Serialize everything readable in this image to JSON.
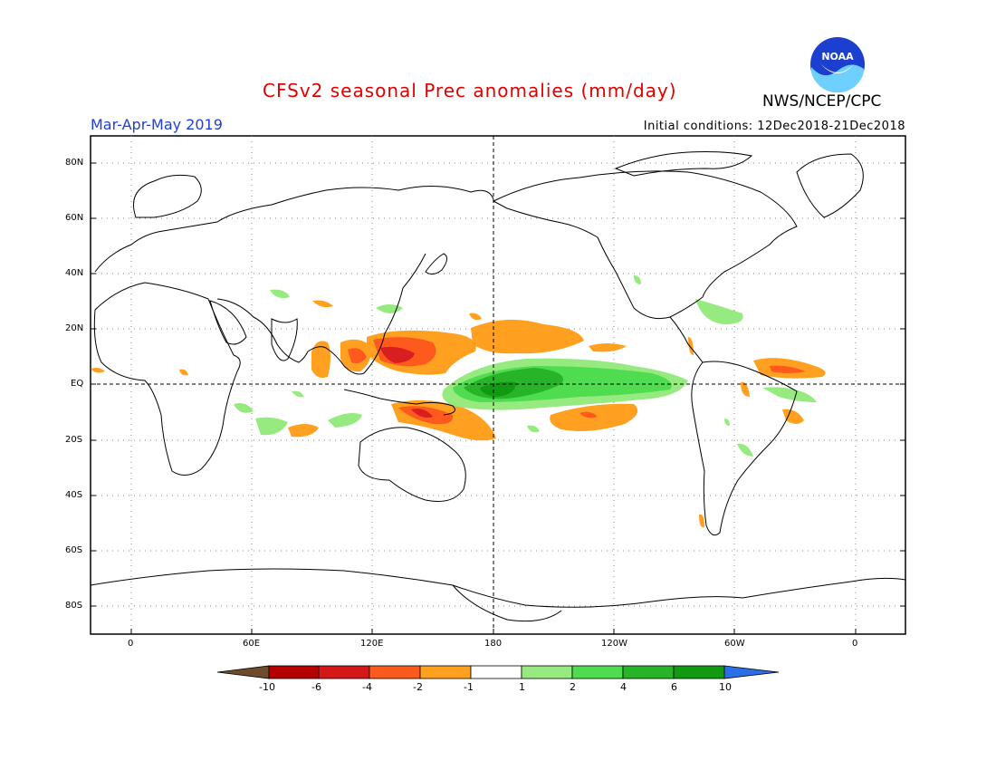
{
  "header": {
    "title": "CFSv2 seasonal Prec anomalies (mm/day)",
    "season": "Mar-Apr-May 2019",
    "initial_conditions": "Initial conditions: 12Dec2018-21Dec2018",
    "agency": "NWS/NCEP/CPC",
    "logo_text": "NOAA"
  },
  "map": {
    "lat_ticks": [
      "80N",
      "60N",
      "40N",
      "20N",
      "EQ",
      "20S",
      "40S",
      "60S",
      "80S"
    ],
    "lon_ticks": [
      "0",
      "60E",
      "120E",
      "180",
      "120W",
      "60W",
      "0"
    ]
  },
  "colorbar": {
    "labels": [
      "-10",
      "-6",
      "-4",
      "-2",
      "-1",
      "1",
      "2",
      "4",
      "6",
      "10"
    ],
    "colors": [
      "#6e4b2a",
      "#b40000",
      "#d41818",
      "#ff5a1e",
      "#ffa020",
      "#ffffff",
      "#96ea80",
      "#50dc50",
      "#28b428",
      "#119911",
      "#2a6fe6"
    ]
  },
  "colors": {
    "title": "#e00000",
    "season": "#2040d0",
    "dry_strong": "#d81e1e",
    "dry_mod": "#ff5a1e",
    "dry_weak": "#ffa020",
    "wet_weak": "#96ea80",
    "wet_mod": "#50dc50",
    "wet_strong": "#28b428"
  }
}
